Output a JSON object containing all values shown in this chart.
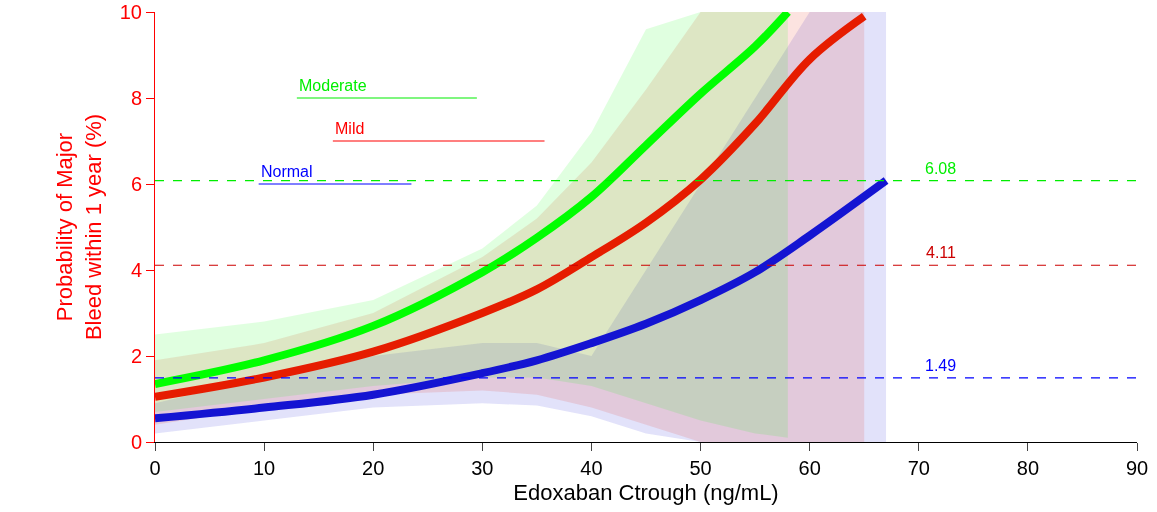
{
  "chart_data": {
    "type": "line",
    "xlabel": "Edoxaban Ctrough (ng/mL)",
    "ylabel": "Probability of Major\nBleed within 1 year (%)",
    "xlim": [
      0,
      90
    ],
    "xticks": [
      0,
      10,
      20,
      30,
      40,
      50,
      60,
      70,
      80,
      90
    ],
    "ylim": [
      0,
      10
    ],
    "yticks": [
      0,
      2,
      4,
      6,
      8,
      10
    ],
    "grid": false,
    "legend": false,
    "marker": "none",
    "line_style": "solid",
    "series": [
      {
        "color": "#1414d2",
        "x": [
          0,
          10,
          20,
          30,
          35,
          40,
          45,
          50,
          55,
          60,
          67
        ],
        "values": [
          0.55,
          0.8,
          1.1,
          1.6,
          1.9,
          2.3,
          2.75,
          3.3,
          3.95,
          4.8,
          6.08
        ],
        "lower": [
          0.2,
          0.5,
          0.8,
          0.9,
          0.85,
          0.6,
          0.2,
          0,
          0,
          0,
          0
        ],
        "upper": [
          0.9,
          1.5,
          2.0,
          2.3,
          2.3,
          2.0,
          4,
          6,
          8,
          10,
          10
        ]
      },
      {
        "color": "#e61c00",
        "x": [
          0,
          10,
          20,
          30,
          35,
          40,
          45,
          50,
          55,
          60,
          65
        ],
        "values": [
          1.05,
          1.5,
          2.1,
          3.0,
          3.55,
          4.3,
          5.1,
          6.1,
          7.4,
          8.9,
          9.9
        ],
        "lower": [
          0.4,
          0.8,
          1.1,
          1.2,
          1.1,
          0.8,
          0.4,
          0,
          0,
          0,
          0
        ],
        "upper": [
          1.9,
          2.3,
          3.0,
          4.3,
          5.2,
          6.5,
          8.2,
          10,
          10,
          10,
          10
        ]
      },
      {
        "color": "#00ff00",
        "x": [
          0,
          10,
          20,
          30,
          35,
          40,
          45,
          50,
          55,
          58
        ],
        "values": [
          1.35,
          1.9,
          2.7,
          3.95,
          4.75,
          5.7,
          6.9,
          8.1,
          9.2,
          10
        ],
        "lower": [
          0.7,
          1.0,
          1.3,
          1.5,
          1.5,
          1.3,
          0.9,
          0.5,
          0.2,
          0.1
        ],
        "upper": [
          2.5,
          2.8,
          3.3,
          4.5,
          5.5,
          7.2,
          9.6,
          10,
          10,
          10
        ]
      },
      {
        "name": "Normal",
        "color": "#0000ff",
        "x": [
          9.5,
          23.5
        ],
        "values": [
          6,
          6
        ]
      },
      {
        "name": "Mild",
        "color": "#ff0000",
        "x": [
          16.3,
          35.7
        ],
        "values": [
          7,
          7
        ]
      },
      {
        "name": "Moderate",
        "color": "#00ee00",
        "x": [
          13,
          29.5
        ],
        "values": [
          8,
          8
        ]
      }
    ],
    "ref_lines": [
      {
        "axis": "y",
        "value": 6.08,
        "label": "6.08",
        "color": "#00ee00",
        "line_style": "dashed"
      },
      {
        "axis": "y",
        "value": 4.11,
        "label": "4.11",
        "color": "#cc0000",
        "line_style": "dashed"
      },
      {
        "axis": "y",
        "value": 1.49,
        "label": "1.49",
        "color": "#0000ff",
        "line_style": "dashed"
      }
    ]
  }
}
